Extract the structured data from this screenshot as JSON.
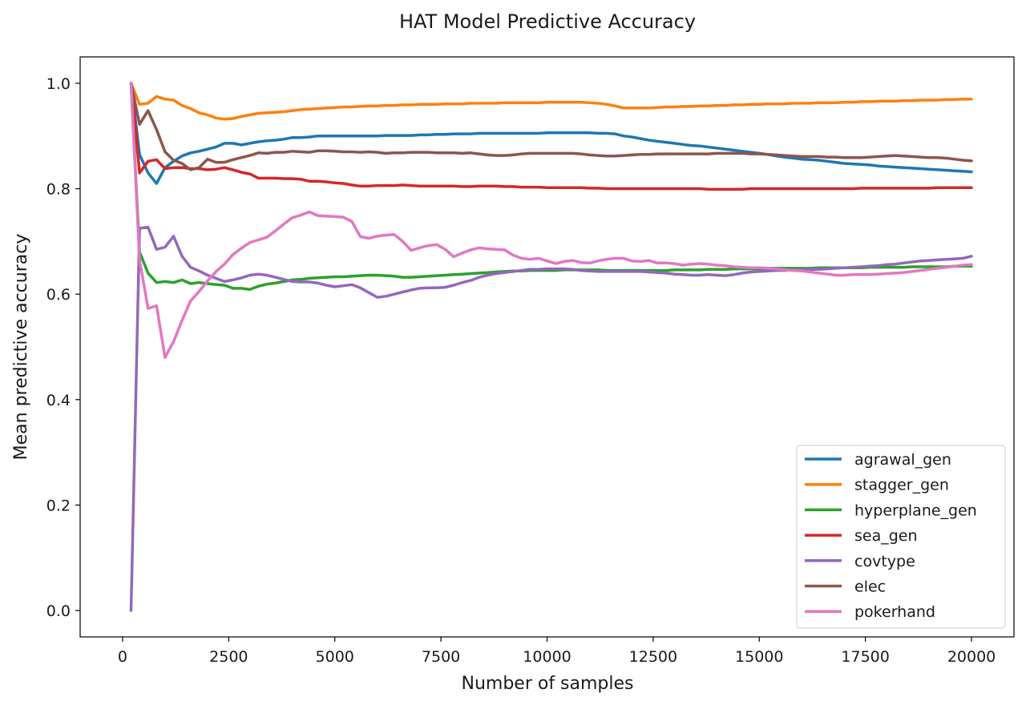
{
  "chart_data": {
    "type": "line",
    "title": "HAT Model Predictive Accuracy",
    "xlabel": "Number of samples",
    "ylabel": "Mean predictive accuracy",
    "xlim": [
      -1000,
      21000
    ],
    "ylim": [
      -0.05,
      1.05
    ],
    "xticks": [
      0,
      2500,
      5000,
      7500,
      10000,
      12500,
      15000,
      17500,
      20000
    ],
    "yticks": [
      0.0,
      0.2,
      0.4,
      0.6,
      0.8,
      1.0
    ],
    "xtick_labels": [
      "0",
      "2500",
      "5000",
      "7500",
      "10000",
      "12500",
      "15000",
      "17500",
      "20000"
    ],
    "ytick_labels": [
      "0.0",
      "0.2",
      "0.4",
      "0.6",
      "0.8",
      "1.0"
    ],
    "grid": false,
    "legend_position": "lower-right",
    "x": [
      200,
      400,
      600,
      800,
      1000,
      1200,
      1400,
      1600,
      1800,
      2000,
      2200,
      2400,
      2600,
      2800,
      3000,
      3200,
      3400,
      3600,
      3800,
      4000,
      4200,
      4400,
      4600,
      4800,
      5000,
      5200,
      5400,
      5600,
      5800,
      6000,
      6200,
      6400,
      6600,
      6800,
      7000,
      7200,
      7400,
      7600,
      7800,
      8000,
      8200,
      8400,
      8600,
      8800,
      9000,
      9200,
      9400,
      9600,
      9800,
      10000,
      10200,
      10400,
      10600,
      10800,
      11000,
      11200,
      11400,
      11600,
      11800,
      12000,
      12200,
      12400,
      12600,
      12800,
      13000,
      13200,
      13400,
      13600,
      13800,
      14000,
      14200,
      14400,
      14600,
      14800,
      15000,
      15200,
      15400,
      15600,
      15800,
      16000,
      16200,
      16400,
      16600,
      16800,
      17000,
      17200,
      17400,
      17600,
      17800,
      18000,
      18200,
      18400,
      18600,
      18800,
      19000,
      19200,
      19400,
      19600,
      19800,
      20000
    ],
    "series": [
      {
        "name": "agrawal_gen",
        "color": "#1f77b4",
        "values": [
          1.0,
          0.865,
          0.83,
          0.81,
          0.84,
          0.852,
          0.862,
          0.868,
          0.871,
          0.875,
          0.879,
          0.886,
          0.886,
          0.883,
          0.886,
          0.889,
          0.891,
          0.892,
          0.894,
          0.897,
          0.897,
          0.898,
          0.9,
          0.9,
          0.9,
          0.9,
          0.9,
          0.9,
          0.9,
          0.9,
          0.901,
          0.901,
          0.901,
          0.901,
          0.902,
          0.902,
          0.903,
          0.903,
          0.904,
          0.904,
          0.904,
          0.905,
          0.905,
          0.905,
          0.905,
          0.905,
          0.905,
          0.905,
          0.905,
          0.906,
          0.906,
          0.906,
          0.906,
          0.906,
          0.906,
          0.905,
          0.905,
          0.904,
          0.9,
          0.898,
          0.895,
          0.892,
          0.89,
          0.888,
          0.886,
          0.884,
          0.882,
          0.881,
          0.879,
          0.877,
          0.875,
          0.873,
          0.871,
          0.869,
          0.867,
          0.865,
          0.862,
          0.86,
          0.858,
          0.856,
          0.855,
          0.854,
          0.852,
          0.85,
          0.848,
          0.847,
          0.846,
          0.845,
          0.843,
          0.842,
          0.841,
          0.84,
          0.839,
          0.838,
          0.837,
          0.836,
          0.835,
          0.834,
          0.833,
          0.832
        ]
      },
      {
        "name": "stagger_gen",
        "color": "#ff7f0e",
        "values": [
          1.0,
          0.96,
          0.962,
          0.975,
          0.97,
          0.968,
          0.958,
          0.952,
          0.944,
          0.94,
          0.934,
          0.932,
          0.933,
          0.937,
          0.94,
          0.943,
          0.944,
          0.945,
          0.946,
          0.948,
          0.95,
          0.951,
          0.952,
          0.953,
          0.954,
          0.955,
          0.955,
          0.956,
          0.957,
          0.957,
          0.958,
          0.958,
          0.959,
          0.959,
          0.96,
          0.96,
          0.96,
          0.961,
          0.961,
          0.961,
          0.962,
          0.962,
          0.962,
          0.962,
          0.963,
          0.963,
          0.963,
          0.963,
          0.963,
          0.964,
          0.964,
          0.964,
          0.964,
          0.964,
          0.963,
          0.962,
          0.96,
          0.957,
          0.953,
          0.953,
          0.953,
          0.953,
          0.954,
          0.955,
          0.955,
          0.956,
          0.956,
          0.957,
          0.957,
          0.958,
          0.958,
          0.959,
          0.959,
          0.96,
          0.96,
          0.961,
          0.961,
          0.961,
          0.962,
          0.962,
          0.962,
          0.963,
          0.963,
          0.963,
          0.964,
          0.964,
          0.965,
          0.965,
          0.966,
          0.966,
          0.966,
          0.967,
          0.967,
          0.968,
          0.968,
          0.968,
          0.969,
          0.969,
          0.97,
          0.97
        ]
      },
      {
        "name": "hyperplane_gen",
        "color": "#2ca02c",
        "values": [
          1.0,
          0.68,
          0.64,
          0.622,
          0.624,
          0.622,
          0.627,
          0.62,
          0.622,
          0.62,
          0.618,
          0.617,
          0.611,
          0.611,
          0.609,
          0.615,
          0.619,
          0.621,
          0.624,
          0.627,
          0.628,
          0.63,
          0.631,
          0.632,
          0.633,
          0.633,
          0.634,
          0.635,
          0.636,
          0.636,
          0.635,
          0.634,
          0.632,
          0.632,
          0.633,
          0.634,
          0.635,
          0.636,
          0.637,
          0.638,
          0.639,
          0.64,
          0.641,
          0.642,
          0.643,
          0.644,
          0.644,
          0.645,
          0.645,
          0.645,
          0.645,
          0.646,
          0.646,
          0.646,
          0.646,
          0.646,
          0.645,
          0.645,
          0.645,
          0.645,
          0.645,
          0.645,
          0.645,
          0.645,
          0.646,
          0.646,
          0.646,
          0.646,
          0.647,
          0.647,
          0.647,
          0.648,
          0.648,
          0.648,
          0.648,
          0.649,
          0.649,
          0.649,
          0.649,
          0.649,
          0.649,
          0.65,
          0.65,
          0.65,
          0.65,
          0.65,
          0.65,
          0.651,
          0.651,
          0.651,
          0.651,
          0.651,
          0.652,
          0.652,
          0.652,
          0.652,
          0.652,
          0.653,
          0.653,
          0.653
        ]
      },
      {
        "name": "sea_gen",
        "color": "#d62728",
        "values": [
          1.0,
          0.83,
          0.852,
          0.855,
          0.838,
          0.84,
          0.84,
          0.838,
          0.838,
          0.836,
          0.837,
          0.84,
          0.836,
          0.831,
          0.828,
          0.82,
          0.82,
          0.82,
          0.819,
          0.819,
          0.818,
          0.814,
          0.814,
          0.813,
          0.811,
          0.81,
          0.807,
          0.805,
          0.805,
          0.806,
          0.806,
          0.806,
          0.807,
          0.806,
          0.805,
          0.805,
          0.805,
          0.805,
          0.805,
          0.804,
          0.804,
          0.805,
          0.805,
          0.805,
          0.804,
          0.804,
          0.803,
          0.803,
          0.803,
          0.802,
          0.802,
          0.802,
          0.802,
          0.802,
          0.801,
          0.801,
          0.8,
          0.8,
          0.8,
          0.8,
          0.8,
          0.8,
          0.8,
          0.8,
          0.8,
          0.8,
          0.8,
          0.8,
          0.799,
          0.799,
          0.799,
          0.799,
          0.799,
          0.8,
          0.8,
          0.8,
          0.8,
          0.8,
          0.8,
          0.8,
          0.8,
          0.8,
          0.8,
          0.8,
          0.8,
          0.8,
          0.801,
          0.801,
          0.801,
          0.801,
          0.801,
          0.801,
          0.801,
          0.801,
          0.801,
          0.802,
          0.802,
          0.802,
          0.802,
          0.802
        ]
      },
      {
        "name": "covtype",
        "color": "#9467bd",
        "values": [
          0.0,
          0.725,
          0.727,
          0.685,
          0.689,
          0.71,
          0.672,
          0.651,
          0.644,
          0.636,
          0.63,
          0.624,
          0.627,
          0.631,
          0.636,
          0.638,
          0.636,
          0.632,
          0.628,
          0.624,
          0.623,
          0.623,
          0.621,
          0.617,
          0.614,
          0.616,
          0.618,
          0.612,
          0.603,
          0.594,
          0.596,
          0.6,
          0.604,
          0.608,
          0.611,
          0.612,
          0.612,
          0.613,
          0.617,
          0.622,
          0.626,
          0.632,
          0.636,
          0.639,
          0.641,
          0.643,
          0.645,
          0.647,
          0.647,
          0.648,
          0.648,
          0.648,
          0.647,
          0.645,
          0.644,
          0.643,
          0.643,
          0.643,
          0.643,
          0.643,
          0.643,
          0.642,
          0.641,
          0.64,
          0.638,
          0.637,
          0.636,
          0.636,
          0.637,
          0.636,
          0.635,
          0.637,
          0.64,
          0.642,
          0.643,
          0.644,
          0.645,
          0.645,
          0.646,
          0.646,
          0.647,
          0.647,
          0.648,
          0.649,
          0.65,
          0.651,
          0.652,
          0.653,
          0.654,
          0.656,
          0.657,
          0.659,
          0.661,
          0.663,
          0.664,
          0.665,
          0.666,
          0.667,
          0.668,
          0.672
        ]
      },
      {
        "name": "elec",
        "color": "#8c564b",
        "values": [
          1.0,
          0.922,
          0.948,
          0.912,
          0.87,
          0.854,
          0.848,
          0.836,
          0.84,
          0.856,
          0.85,
          0.85,
          0.855,
          0.859,
          0.863,
          0.868,
          0.867,
          0.869,
          0.869,
          0.871,
          0.87,
          0.869,
          0.872,
          0.872,
          0.871,
          0.87,
          0.87,
          0.869,
          0.87,
          0.869,
          0.867,
          0.868,
          0.868,
          0.869,
          0.869,
          0.869,
          0.868,
          0.868,
          0.868,
          0.867,
          0.868,
          0.866,
          0.864,
          0.863,
          0.863,
          0.864,
          0.866,
          0.867,
          0.867,
          0.867,
          0.867,
          0.867,
          0.867,
          0.866,
          0.864,
          0.863,
          0.862,
          0.862,
          0.863,
          0.864,
          0.865,
          0.865,
          0.866,
          0.866,
          0.866,
          0.866,
          0.866,
          0.866,
          0.866,
          0.867,
          0.867,
          0.867,
          0.867,
          0.866,
          0.866,
          0.865,
          0.864,
          0.863,
          0.862,
          0.861,
          0.861,
          0.861,
          0.86,
          0.86,
          0.859,
          0.859,
          0.859,
          0.86,
          0.861,
          0.862,
          0.863,
          0.862,
          0.861,
          0.86,
          0.859,
          0.859,
          0.858,
          0.856,
          0.854,
          0.853
        ]
      },
      {
        "name": "pokerhand",
        "color": "#e377c2",
        "values": [
          1.0,
          0.665,
          0.573,
          0.578,
          0.48,
          0.51,
          0.55,
          0.587,
          0.605,
          0.625,
          0.643,
          0.657,
          0.675,
          0.687,
          0.698,
          0.703,
          0.708,
          0.72,
          0.733,
          0.745,
          0.75,
          0.756,
          0.749,
          0.748,
          0.747,
          0.746,
          0.738,
          0.709,
          0.706,
          0.71,
          0.712,
          0.713,
          0.7,
          0.683,
          0.688,
          0.692,
          0.694,
          0.685,
          0.671,
          0.678,
          0.684,
          0.688,
          0.686,
          0.685,
          0.684,
          0.674,
          0.668,
          0.666,
          0.668,
          0.663,
          0.658,
          0.662,
          0.664,
          0.66,
          0.659,
          0.663,
          0.666,
          0.668,
          0.668,
          0.663,
          0.662,
          0.664,
          0.659,
          0.659,
          0.658,
          0.655,
          0.657,
          0.658,
          0.657,
          0.655,
          0.654,
          0.652,
          0.651,
          0.65,
          0.65,
          0.649,
          0.648,
          0.646,
          0.645,
          0.644,
          0.642,
          0.64,
          0.638,
          0.636,
          0.636,
          0.637,
          0.637,
          0.637,
          0.638,
          0.639,
          0.64,
          0.641,
          0.643,
          0.645,
          0.647,
          0.649,
          0.651,
          0.653,
          0.655,
          0.656
        ]
      }
    ]
  }
}
